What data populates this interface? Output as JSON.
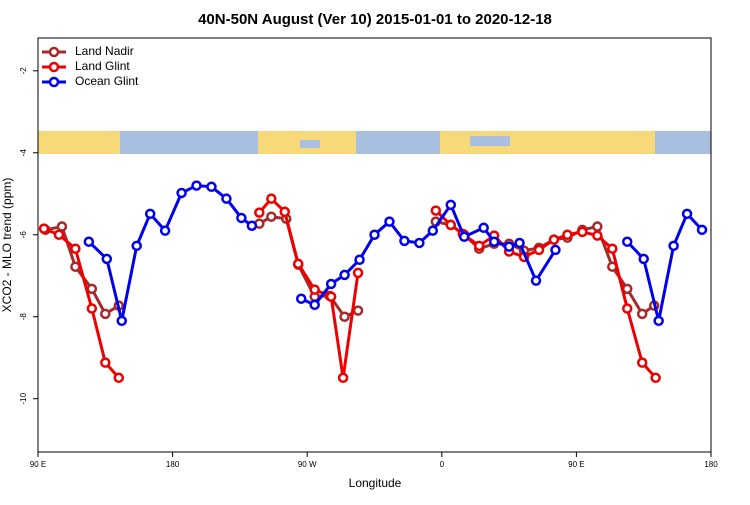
{
  "chart_data": {
    "type": "line",
    "title": "40N-50N August (Ver 10)   2015-01-01 to 2020-12-18",
    "x_label": "Longitude",
    "y_label": "XCO2 - MLO trend (ppm)",
    "xlim": [
      90,
      540
    ],
    "xticks": [
      {
        "value": 90,
        "label": "90 E"
      },
      {
        "value": 180,
        "label": "180"
      },
      {
        "value": 270,
        "label": "90 W"
      },
      {
        "value": 360,
        "label": "0"
      },
      {
        "value": 450,
        "label": "90 E"
      },
      {
        "value": 540,
        "label": "180"
      }
    ],
    "ylim": [
      -11.3,
      -1.2
    ],
    "yticks": [
      -2,
      -4,
      -6,
      -8,
      -10
    ],
    "legend": "top-left",
    "series": [
      {
        "name": "Land Nadir",
        "color": "#a52a2a",
        "x": [
          95,
          106,
          115,
          126,
          135,
          144,
          null,
          238,
          246,
          256,
          264,
          275,
          285,
          295,
          304,
          null,
          356,
          366,
          375,
          385,
          395,
          405,
          415,
          425,
          435,
          444,
          454,
          464,
          474,
          484,
          494,
          502
        ],
        "values": [
          -5.88,
          -5.8,
          -6.78,
          -7.32,
          -7.93,
          -7.73,
          null,
          -5.73,
          -5.56,
          -5.61,
          -6.73,
          -7.51,
          -7.49,
          -8.0,
          -7.85,
          null,
          -5.68,
          -5.76,
          -6.0,
          -6.34,
          -6.22,
          -6.22,
          -6.39,
          -6.32,
          -6.12,
          -6.07,
          -5.88,
          -5.8,
          -6.78,
          -7.32,
          -7.93,
          -7.73
        ]
      },
      {
        "name": "Land Glint",
        "color": "#ee0000",
        "x": [
          94,
          104,
          115,
          126,
          135,
          144,
          null,
          238,
          246,
          255,
          264,
          275,
          286,
          294,
          304,
          null,
          356,
          366,
          374,
          385,
          395,
          405,
          415,
          425,
          435,
          444,
          454,
          464,
          474,
          484,
          494,
          503
        ],
        "values": [
          -5.85,
          -6.0,
          -6.34,
          -7.8,
          -9.12,
          -9.49,
          null,
          -5.46,
          -5.12,
          -5.44,
          -6.71,
          -7.34,
          -7.51,
          -9.49,
          -6.93,
          null,
          -5.41,
          -5.76,
          -5.98,
          -6.27,
          -6.02,
          -6.41,
          -6.54,
          -6.37,
          -6.12,
          -6.0,
          -5.93,
          -6.02,
          -6.34,
          -7.8,
          -9.12,
          -9.49
        ]
      },
      {
        "name": "Ocean Glint",
        "color": "#0000ee",
        "x": [
          124,
          136,
          146,
          156,
          165,
          175,
          186,
          196,
          206,
          216,
          226,
          233,
          null,
          266,
          275,
          286,
          295,
          305,
          315,
          325,
          335,
          345,
          354,
          366,
          375,
          388,
          395,
          405,
          412,
          423,
          436,
          null,
          484,
          495,
          505,
          515,
          524,
          534
        ],
        "values": [
          -6.17,
          -6.59,
          -8.1,
          -6.27,
          -5.49,
          -5.9,
          -4.98,
          -4.8,
          -4.83,
          -5.12,
          -5.59,
          -5.78,
          null,
          -7.56,
          -7.71,
          -7.2,
          -6.98,
          -6.61,
          -6.0,
          -5.68,
          -6.15,
          -6.2,
          -5.9,
          -5.27,
          -6.05,
          -5.83,
          -6.17,
          -6.29,
          -6.2,
          -7.12,
          -6.37,
          null,
          -6.17,
          -6.59,
          -8.1,
          -6.27,
          -5.49,
          -5.88
        ]
      }
    ]
  }
}
